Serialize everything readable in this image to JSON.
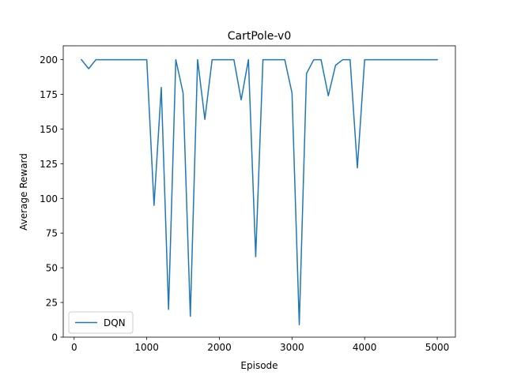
{
  "chart_data": {
    "type": "line",
    "title": "CartPole-v0",
    "xlabel": "Episode",
    "ylabel": "Average Reward",
    "xlim": [
      -150,
      5250
    ],
    "ylim": [
      0,
      210
    ],
    "xticks": [
      0,
      1000,
      2000,
      3000,
      4000,
      5000
    ],
    "yticks": [
      0,
      25,
      50,
      75,
      100,
      125,
      150,
      175,
      200
    ],
    "grid": false,
    "legend": "lower-left",
    "series": [
      {
        "name": "DQN",
        "color": "#1f77b4",
        "x": [
          100,
          200,
          300,
          400,
          500,
          600,
          700,
          800,
          900,
          1000,
          1100,
          1200,
          1300,
          1400,
          1500,
          1600,
          1700,
          1800,
          1900,
          2000,
          2100,
          2200,
          2300,
          2400,
          2500,
          2600,
          2700,
          2800,
          2900,
          3000,
          3100,
          3200,
          3300,
          3400,
          3500,
          3600,
          3700,
          3800,
          3900,
          4000,
          4100,
          4200,
          4300,
          4400,
          4500,
          4600,
          4700,
          4800,
          4900,
          5000
        ],
        "y": [
          200,
          193.5,
          200,
          200,
          200,
          200,
          200,
          200,
          200,
          200,
          95,
          180,
          20,
          200,
          176,
          15,
          200,
          157,
          200,
          200,
          200,
          200,
          171,
          200,
          58,
          200,
          200,
          200,
          200,
          176,
          9,
          190,
          200,
          200,
          174,
          196,
          200,
          200,
          122,
          200,
          200,
          200,
          200,
          200,
          200,
          200,
          200,
          200,
          200,
          200
        ]
      }
    ]
  }
}
